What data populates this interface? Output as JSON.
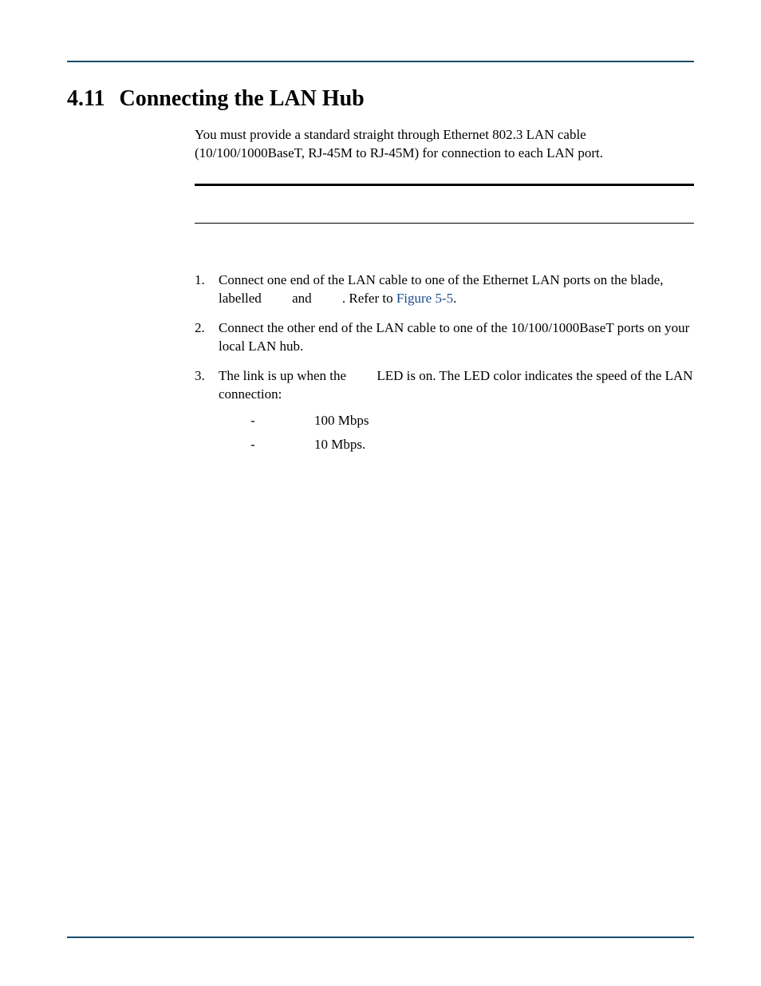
{
  "colors": {
    "rule": "#1a4d6e",
    "link": "#1a4d8a",
    "text": "#000000",
    "background": "#ffffff"
  },
  "heading": {
    "number": "4.11",
    "title": "Connecting the LAN Hub"
  },
  "intro": "You must provide a standard straight through Ethernet 802.3 LAN cable (10/100/1000BaseT, RJ-45M to RJ-45M) for connection to each LAN port.",
  "steps": [
    {
      "marker": "1.",
      "parts": [
        {
          "text": "Connect one end of the LAN cable to one of the Ethernet LAN ports on the blade, labelled "
        },
        {
          "gap": "        "
        },
        {
          "text": "and "
        },
        {
          "gap": "        "
        },
        {
          "text": ". Refer to "
        },
        {
          "xref": "Figure 5-5"
        },
        {
          "text": "."
        }
      ]
    },
    {
      "marker": "2.",
      "parts": [
        {
          "text": "Connect the other end of the LAN cable to one of the 10/100/1000BaseT ports on your local LAN hub."
        }
      ]
    },
    {
      "marker": "3.",
      "parts": [
        {
          "text": "The link is up when the "
        },
        {
          "gap": "        "
        },
        {
          "text": "LED is on. The LED color indicates the speed of the LAN connection:"
        }
      ],
      "sub": [
        {
          "dash": "-",
          "text": "100 Mbps"
        },
        {
          "dash": "-",
          "text": "10 Mbps."
        }
      ]
    }
  ]
}
